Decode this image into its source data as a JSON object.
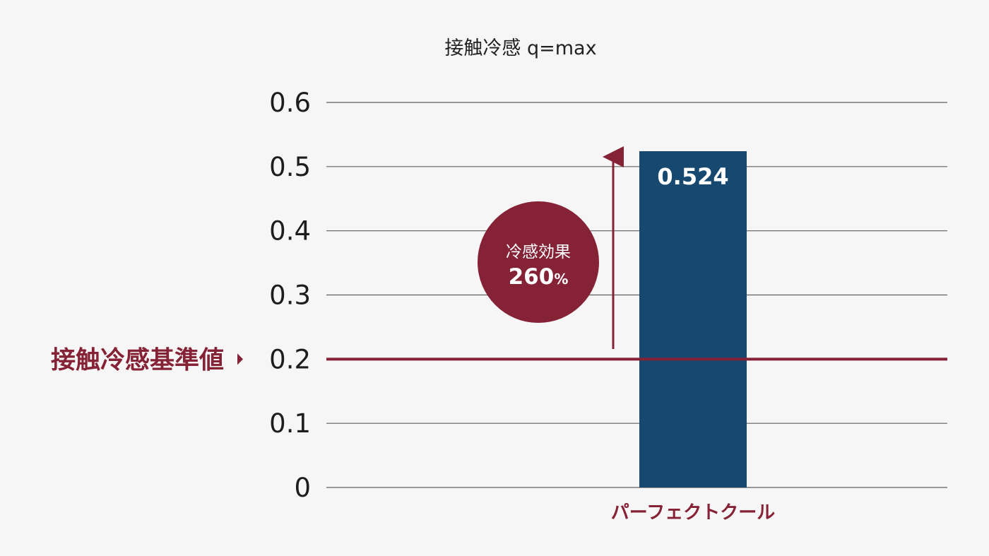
{
  "chart_data": {
    "type": "bar",
    "title": "接触冷感 q=max",
    "categories": [
      "パーフェクトクール"
    ],
    "values": [
      0.524
    ],
    "value_labels": [
      "0.524"
    ],
    "ylim": [
      0,
      0.6
    ],
    "yticks": [
      {
        "value": 0.6,
        "label": "0.6"
      },
      {
        "value": 0.5,
        "label": "0.5"
      },
      {
        "value": 0.4,
        "label": "0.4"
      },
      {
        "value": 0.3,
        "label": "0.3"
      },
      {
        "value": 0.2,
        "label": "0.2"
      },
      {
        "value": 0.1,
        "label": "0.1"
      },
      {
        "value": 0,
        "label": "0"
      }
    ],
    "grid": true,
    "reference_line": {
      "value": 0.2,
      "label": "接触冷感基準値"
    },
    "annotation": {
      "title": "冷感効果",
      "value": "260",
      "unit": "%"
    }
  },
  "colors": {
    "background": "#f6f6f6",
    "bar": "#174870",
    "accent": "#862236",
    "grid": "#5f5f5f",
    "text": "#1d1d1d"
  }
}
